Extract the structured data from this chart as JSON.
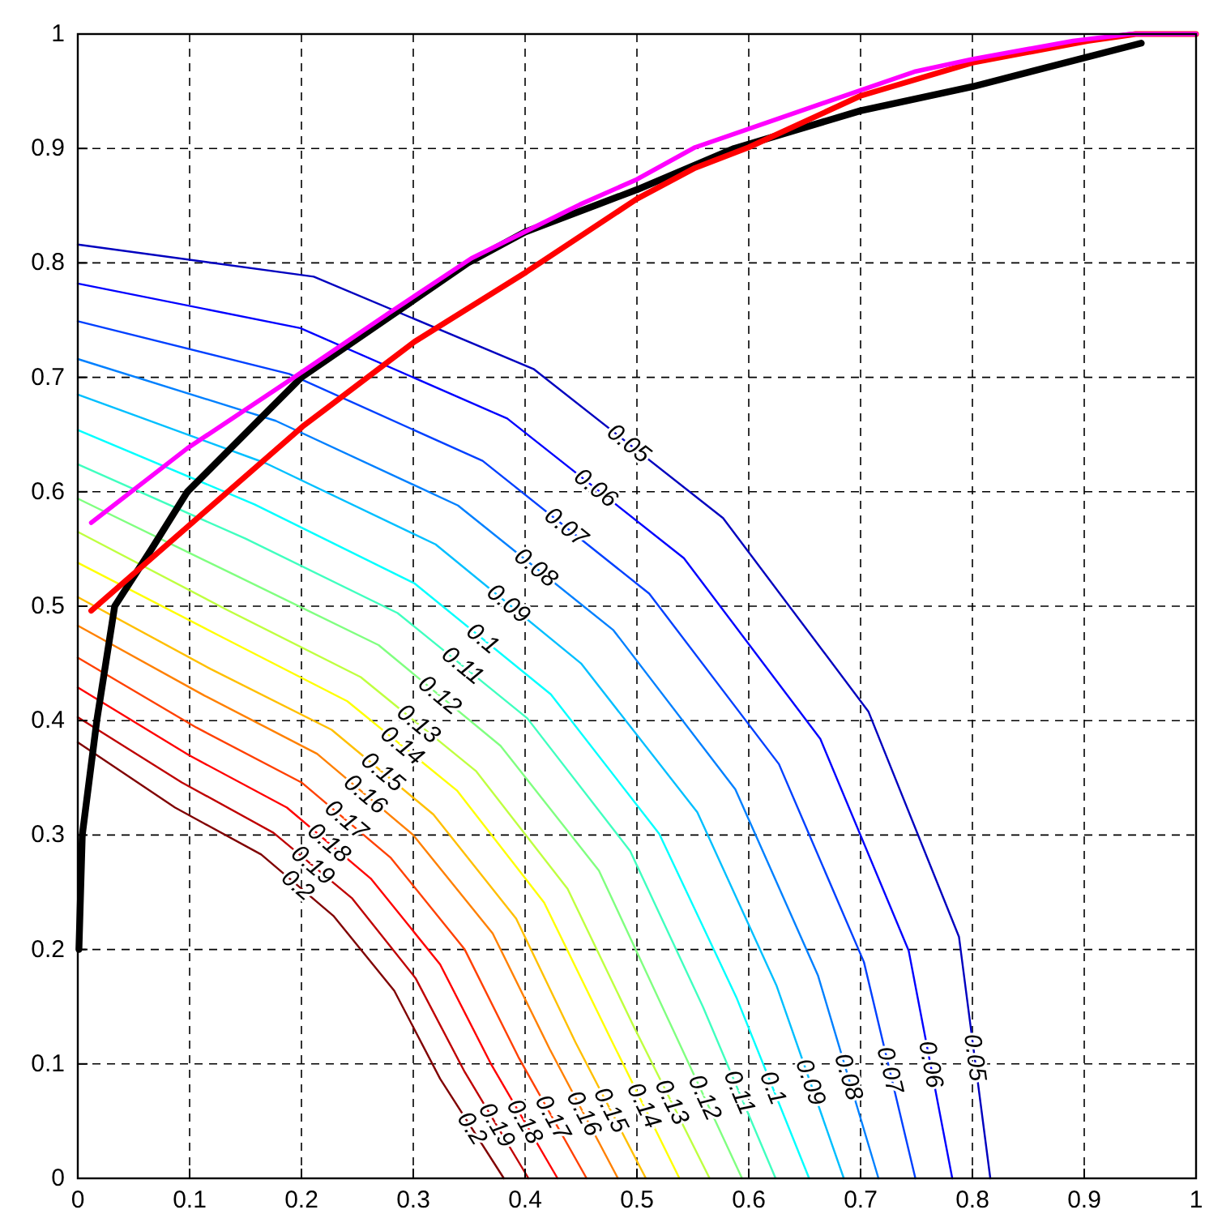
{
  "chart_data": {
    "type": "line",
    "xlim": [
      0,
      1
    ],
    "ylim": [
      0,
      1
    ],
    "xticks": [
      0,
      0.1,
      0.2,
      0.3,
      0.4,
      0.5,
      0.6,
      0.7,
      0.8,
      0.9,
      1
    ],
    "yticks": [
      0,
      0.1,
      0.2,
      0.3,
      0.4,
      0.5,
      0.6,
      0.7,
      0.8,
      0.9,
      1
    ],
    "grid": true,
    "line_style": "solid",
    "marker": "none",
    "series": [
      {
        "name": "0.05",
        "color": "#0000bf",
        "x": [
          0,
          0.211,
          0.408,
          0.577,
          0.707,
          0.788,
          0.816
        ],
        "values": [
          0.816,
          0.788,
          0.707,
          0.577,
          0.408,
          0.211,
          0
        ]
      },
      {
        "name": "0.06",
        "color": "#0000ff",
        "x": [
          0,
          0.199,
          0.384,
          0.542,
          0.664,
          0.743,
          0.782
        ],
        "values": [
          0.782,
          0.743,
          0.664,
          0.542,
          0.384,
          0.199,
          0
        ]
      },
      {
        "name": "0.07",
        "color": "#0040ff",
        "x": [
          0,
          0.189,
          0.362,
          0.511,
          0.627,
          0.703,
          0.749
        ],
        "values": [
          0.749,
          0.703,
          0.627,
          0.511,
          0.362,
          0.189,
          0
        ]
      },
      {
        "name": "0.08",
        "color": "#0080ff",
        "x": [
          0,
          0.177,
          0.34,
          0.479,
          0.588,
          0.662,
          0.716
        ],
        "values": [
          0.716,
          0.662,
          0.588,
          0.479,
          0.34,
          0.177,
          0
        ]
      },
      {
        "name": "0.09",
        "color": "#00bfff",
        "x": [
          0,
          0.168,
          0.32,
          0.45,
          0.554,
          0.625,
          0.685
        ],
        "values": [
          0.685,
          0.625,
          0.554,
          0.45,
          0.32,
          0.168,
          0
        ]
      },
      {
        "name": "0.1",
        "color": "#00ffff",
        "x": [
          0,
          0.158,
          0.301,
          0.423,
          0.52,
          0.589,
          0.654
        ],
        "values": [
          0.654,
          0.589,
          0.52,
          0.423,
          0.301,
          0.158,
          0
        ]
      },
      {
        "name": "0.11",
        "color": "#40ffbf",
        "x": [
          0,
          0.15,
          0.286,
          0.402,
          0.494,
          0.559,
          0.624
        ],
        "values": [
          0.624,
          0.559,
          0.494,
          0.402,
          0.286,
          0.15,
          0
        ]
      },
      {
        "name": "0.12",
        "color": "#80ff80",
        "x": [
          0,
          0.141,
          0.269,
          0.378,
          0.466,
          0.527,
          0.594
        ],
        "values": [
          0.594,
          0.527,
          0.466,
          0.378,
          0.269,
          0.141,
          0
        ]
      },
      {
        "name": "0.13",
        "color": "#bfff40",
        "x": [
          0,
          0.133,
          0.253,
          0.356,
          0.438,
          0.497,
          0.565
        ],
        "values": [
          0.565,
          0.497,
          0.438,
          0.356,
          0.253,
          0.133,
          0
        ]
      },
      {
        "name": "0.14",
        "color": "#ffff00",
        "x": [
          0,
          0.127,
          0.241,
          0.339,
          0.417,
          0.474,
          0.538
        ],
        "values": [
          0.538,
          0.474,
          0.417,
          0.339,
          0.241,
          0.127,
          0
        ]
      },
      {
        "name": "0.15",
        "color": "#ffbf00",
        "x": [
          0,
          0.119,
          0.227,
          0.318,
          0.392,
          0.445,
          0.508
        ],
        "values": [
          0.508,
          0.445,
          0.392,
          0.318,
          0.227,
          0.119,
          0
        ]
      },
      {
        "name": "0.16",
        "color": "#ff8000",
        "x": [
          0,
          0.113,
          0.214,
          0.3,
          0.371,
          0.422,
          0.483
        ],
        "values": [
          0.483,
          0.422,
          0.371,
          0.3,
          0.214,
          0.113,
          0
        ]
      },
      {
        "name": "0.17",
        "color": "#ff4000",
        "x": [
          0,
          0.106,
          0.2,
          0.28,
          0.346,
          0.394,
          0.455
        ],
        "values": [
          0.455,
          0.394,
          0.346,
          0.28,
          0.2,
          0.106,
          0
        ]
      },
      {
        "name": "0.18",
        "color": "#ff0000",
        "x": [
          0,
          0.099,
          0.187,
          0.262,
          0.324,
          0.37,
          0.429
        ],
        "values": [
          0.429,
          0.37,
          0.324,
          0.262,
          0.187,
          0.099,
          0
        ]
      },
      {
        "name": "0.19",
        "color": "#bf0000",
        "x": [
          0,
          0.093,
          0.175,
          0.245,
          0.302,
          0.346,
          0.403
        ],
        "values": [
          0.403,
          0.346,
          0.302,
          0.245,
          0.175,
          0.093,
          0
        ]
      },
      {
        "name": "0.2",
        "color": "#800000",
        "x": [
          0,
          0.087,
          0.164,
          0.229,
          0.283,
          0.324,
          0.381
        ],
        "values": [
          0.381,
          0.324,
          0.283,
          0.229,
          0.164,
          0.087,
          0
        ]
      },
      {
        "color": "#000000",
        "x": [
          0.001,
          0.004,
          0.017,
          0.033,
          0.066,
          0.098,
          0.2,
          0.349,
          0.4,
          0.5,
          0.587,
          0.7,
          0.8,
          0.951
        ],
        "values": [
          0.2,
          0.3,
          0.4,
          0.5,
          0.55,
          0.6,
          0.7,
          0.8,
          0.827,
          0.864,
          0.9,
          0.933,
          0.954,
          0.992
        ]
      },
      {
        "color": "#ff0000",
        "x": [
          0.012,
          0.201,
          0.301,
          0.401,
          0.5,
          0.552,
          0.6,
          0.7,
          0.8,
          0.903,
          0.946,
          1
        ],
        "values": [
          0.496,
          0.657,
          0.731,
          0.792,
          0.856,
          0.883,
          0.901,
          0.946,
          0.975,
          0.994,
          1,
          1
        ]
      },
      {
        "color": "#ff00ff",
        "x": [
          0.012,
          0.098,
          0.195,
          0.278,
          0.352,
          0.449,
          0.5,
          0.552,
          0.748,
          0.8,
          0.89,
          0.941,
          1
        ],
        "values": [
          0.573,
          0.638,
          0.701,
          0.756,
          0.804,
          0.851,
          0.873,
          0.901,
          0.967,
          0.978,
          0.994,
          1,
          1
        ]
      }
    ]
  }
}
